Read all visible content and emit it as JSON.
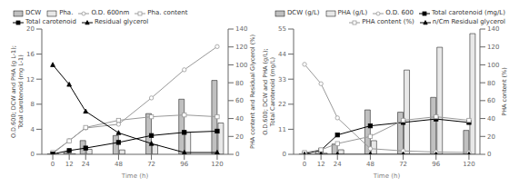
{
  "chart_data": [
    {
      "type": "bar",
      "x": [
        0,
        12,
        24,
        48,
        72,
        96,
        120
      ],
      "xlim": [
        -8,
        128
      ],
      "xticks": [
        0,
        12,
        24,
        48,
        72,
        96,
        120
      ],
      "ylim": [
        0,
        20
      ],
      "yticks": [
        0,
        4,
        8,
        12,
        16,
        20
      ],
      "y2lim": [
        0,
        140
      ],
      "y2ticks": [
        0,
        20,
        40,
        60,
        80,
        100,
        120,
        140
      ],
      "xlabel": "Time (h)",
      "ylabel": "O.D.600; DCW and PHA (g L-1);\nTotal carotenoid (mg L-1)",
      "y2label": "PHA content and Residual Glycerol (%)",
      "legend": "upper left",
      "grid": false,
      "series": [
        {
          "name": "DCW",
          "type": "bar",
          "color": "#c0c0c0",
          "values": [
            0.05,
            0.3,
            2.2,
            3.0,
            6.5,
            8.8,
            11.8
          ]
        },
        {
          "name": "Pha.",
          "type": "bar",
          "color": "#e8e8e8",
          "values": [
            0.02,
            0.1,
            0.8,
            0.7,
            1.5,
            3.5,
            5.0
          ]
        },
        {
          "name": "O.D. 600nm",
          "type": "line",
          "color": "#999999",
          "marker": "open-circle",
          "values": [
            0.1,
            2.2,
            4.2,
            4.8,
            9.0,
            13.5,
            17.2
          ]
        },
        {
          "name": "Pha. content",
          "type": "line",
          "axis": "y2",
          "color": "#999999",
          "marker": "open-square",
          "values": [
            2.0,
            15.0,
            30.0,
            38.0,
            42.0,
            44.0,
            42.0
          ]
        },
        {
          "name": "Total carotenoid",
          "type": "line",
          "color": "#000000",
          "marker": "square",
          "values": [
            0.05,
            0.6,
            1.0,
            1.9,
            3.0,
            3.5,
            3.7
          ]
        },
        {
          "name": "Residual glycerol",
          "type": "line",
          "axis": "y2",
          "color": "#000000",
          "marker": "triangle",
          "values": [
            100.0,
            78.0,
            48.0,
            24.0,
            12.0,
            2.0,
            2.0
          ]
        }
      ]
    },
    {
      "type": "bar",
      "x": [
        0,
        12,
        24,
        48,
        72,
        96,
        120
      ],
      "xlim": [
        -8,
        128
      ],
      "xticks": [
        0,
        12,
        24,
        48,
        72,
        96,
        120
      ],
      "ylim": [
        0,
        55
      ],
      "yticks": [
        0,
        11,
        22,
        33,
        44,
        55
      ],
      "y2lim": [
        0,
        140
      ],
      "y2ticks": [
        0,
        20,
        40,
        60,
        80,
        100,
        120,
        140
      ],
      "xlabel": "Time (h)",
      "ylabel": "O.D.600; DCW and PHA (g/L);\nTotal Carotenoid (mg/L)",
      "y2label": "PHA content (%)",
      "legend": "upper right",
      "grid": false,
      "series": [
        {
          "name": "DCW (g/L)",
          "type": "bar",
          "color": "#c0c0c0",
          "values": [
            0.1,
            1.5,
            4.5,
            19.5,
            18.5,
            25.0,
            10.5
          ]
        },
        {
          "name": "PHA (g/L)",
          "type": "bar",
          "color": "#e8e8e8",
          "values": [
            0.05,
            0.5,
            2.0,
            6.0,
            37.0,
            47.0,
            53.0
          ]
        },
        {
          "name": "O.D. 600",
          "type": "line",
          "color": "#999999",
          "marker": "open-circle",
          "values": [
            39.5,
            31.0,
            16.0,
            2.5,
            1.5,
            1.0,
            0.8
          ]
        },
        {
          "name": "Total carotenoid (mg/L)",
          "type": "line",
          "color": "#000000",
          "marker": "square",
          "values": [
            0.2,
            1.8,
            8.5,
            12.5,
            14.0,
            15.5,
            14.0
          ]
        },
        {
          "name": "PHA content (%)",
          "type": "line",
          "axis": "y2",
          "color": "#999999",
          "marker": "open-square",
          "values": [
            2.0,
            5.0,
            12.0,
            20.0,
            38.0,
            42.0,
            38.0
          ]
        },
        {
          "name": "n/Cm Residual glycerol",
          "type": "line",
          "axis": "y2",
          "color": "#000000",
          "marker": "triangle",
          "values": [
            0,
            0,
            0,
            0,
            0,
            0,
            0
          ]
        }
      ]
    }
  ]
}
